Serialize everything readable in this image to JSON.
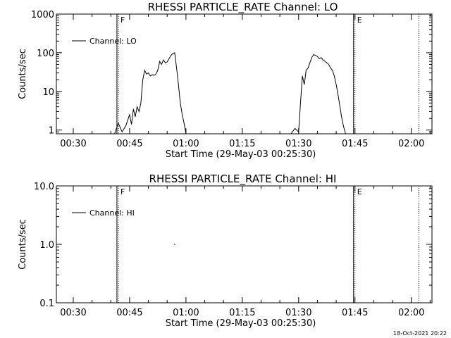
{
  "footer_text": "18-Oct-2021 20:22",
  "chart_data": [
    {
      "type": "line",
      "title": "RHESSI PARTICLE_RATE Channel: LO",
      "xlabel": "Start Time (29-May-03 00:25:30)",
      "ylabel": "Counts/sec",
      "yscale": "log",
      "ylim": [
        0.8,
        1000
      ],
      "xlim_minutes_after_0025": [
        0,
        100
      ],
      "xticks": [
        "00:30",
        "00:45",
        "01:00",
        "01:15",
        "01:30",
        "01:45",
        "02:00"
      ],
      "yticks": [
        "1",
        "10",
        "100",
        "1000"
      ],
      "legend": "Channel: LO",
      "legend_placement": "top-left",
      "markers": [
        {
          "label": "F",
          "time": "00:42",
          "style": "solid+dotted"
        },
        {
          "label": "E",
          "time": "01:45",
          "style": "solid+dotted"
        },
        {
          "label": "",
          "time": "02:02",
          "style": "dotted"
        }
      ],
      "series": [
        {
          "x": [
            "00:41",
            "00:42",
            "00:43",
            "00:44",
            "00:45",
            "00:45.5",
            "00:46",
            "00:46.5",
            "00:47",
            "00:47.5",
            "00:48",
            "00:48.5",
            "00:49",
            "00:49.5",
            "00:50",
            "00:50.5",
            "00:51",
            "00:51.5",
            "00:52",
            "00:52.5",
            "00:53",
            "00:53.5",
            "00:54",
            "00:54.5",
            "00:55",
            "00:55.5",
            "00:56",
            "00:56.5",
            "00:57",
            "00:57.5",
            "00:58",
            "00:58.5",
            "00:59",
            "00:59.5",
            "01:00"
          ],
          "y": [
            0.8,
            1.5,
            0.9,
            1.3,
            2.5,
            1.4,
            3.5,
            2.2,
            4,
            3,
            5,
            20,
            35,
            28,
            30,
            25,
            27,
            26,
            28,
            35,
            60,
            50,
            65,
            55,
            58,
            70,
            85,
            95,
            100,
            40,
            15,
            5,
            2.5,
            1.5,
            0.8
          ]
        },
        {
          "x": [
            "01:28",
            "01:29",
            "01:30",
            "01:30.5",
            "01:31",
            "01:31.5",
            "01:32",
            "01:32.5",
            "01:33",
            "01:33.5",
            "01:34",
            "01:34.5",
            "01:35",
            "01:35.5",
            "01:36",
            "01:36.5",
            "01:37",
            "01:37.5",
            "01:38",
            "01:38.5",
            "01:39",
            "01:39.5",
            "01:40",
            "01:40.5",
            "01:41",
            "01:41.5",
            "01:42",
            "01:42.5",
            "01:43",
            "01:43.5",
            "01:44"
          ],
          "y": [
            0.8,
            1.1,
            0.9,
            5,
            25,
            15,
            35,
            40,
            55,
            75,
            90,
            85,
            80,
            70,
            75,
            65,
            60,
            55,
            50,
            40,
            35,
            25,
            15,
            8,
            4,
            2,
            1.2,
            0.8,
            0.8,
            0.8,
            0.8
          ]
        }
      ]
    },
    {
      "type": "line",
      "title": "RHESSI PARTICLE_RATE Channel: HI",
      "xlabel": "Start Time (29-May-03 00:25:30)",
      "ylabel": "Counts/sec",
      "yscale": "log",
      "ylim": [
        0.1,
        10
      ],
      "xlim_minutes_after_0025": [
        0,
        100
      ],
      "xticks": [
        "00:30",
        "00:45",
        "01:00",
        "01:15",
        "01:30",
        "01:45",
        "02:00"
      ],
      "yticks": [
        "0.1",
        "1.0",
        "10.0"
      ],
      "legend": "Channel: HI",
      "legend_placement": "top-left",
      "markers": [
        {
          "label": "F",
          "time": "00:42",
          "style": "solid+dotted"
        },
        {
          "label": "E",
          "time": "01:45",
          "style": "solid+dotted"
        },
        {
          "label": "",
          "time": "02:02",
          "style": "dotted"
        }
      ],
      "series": [
        {
          "x": [
            "00:57"
          ],
          "y": [
            1.0
          ]
        }
      ]
    }
  ]
}
